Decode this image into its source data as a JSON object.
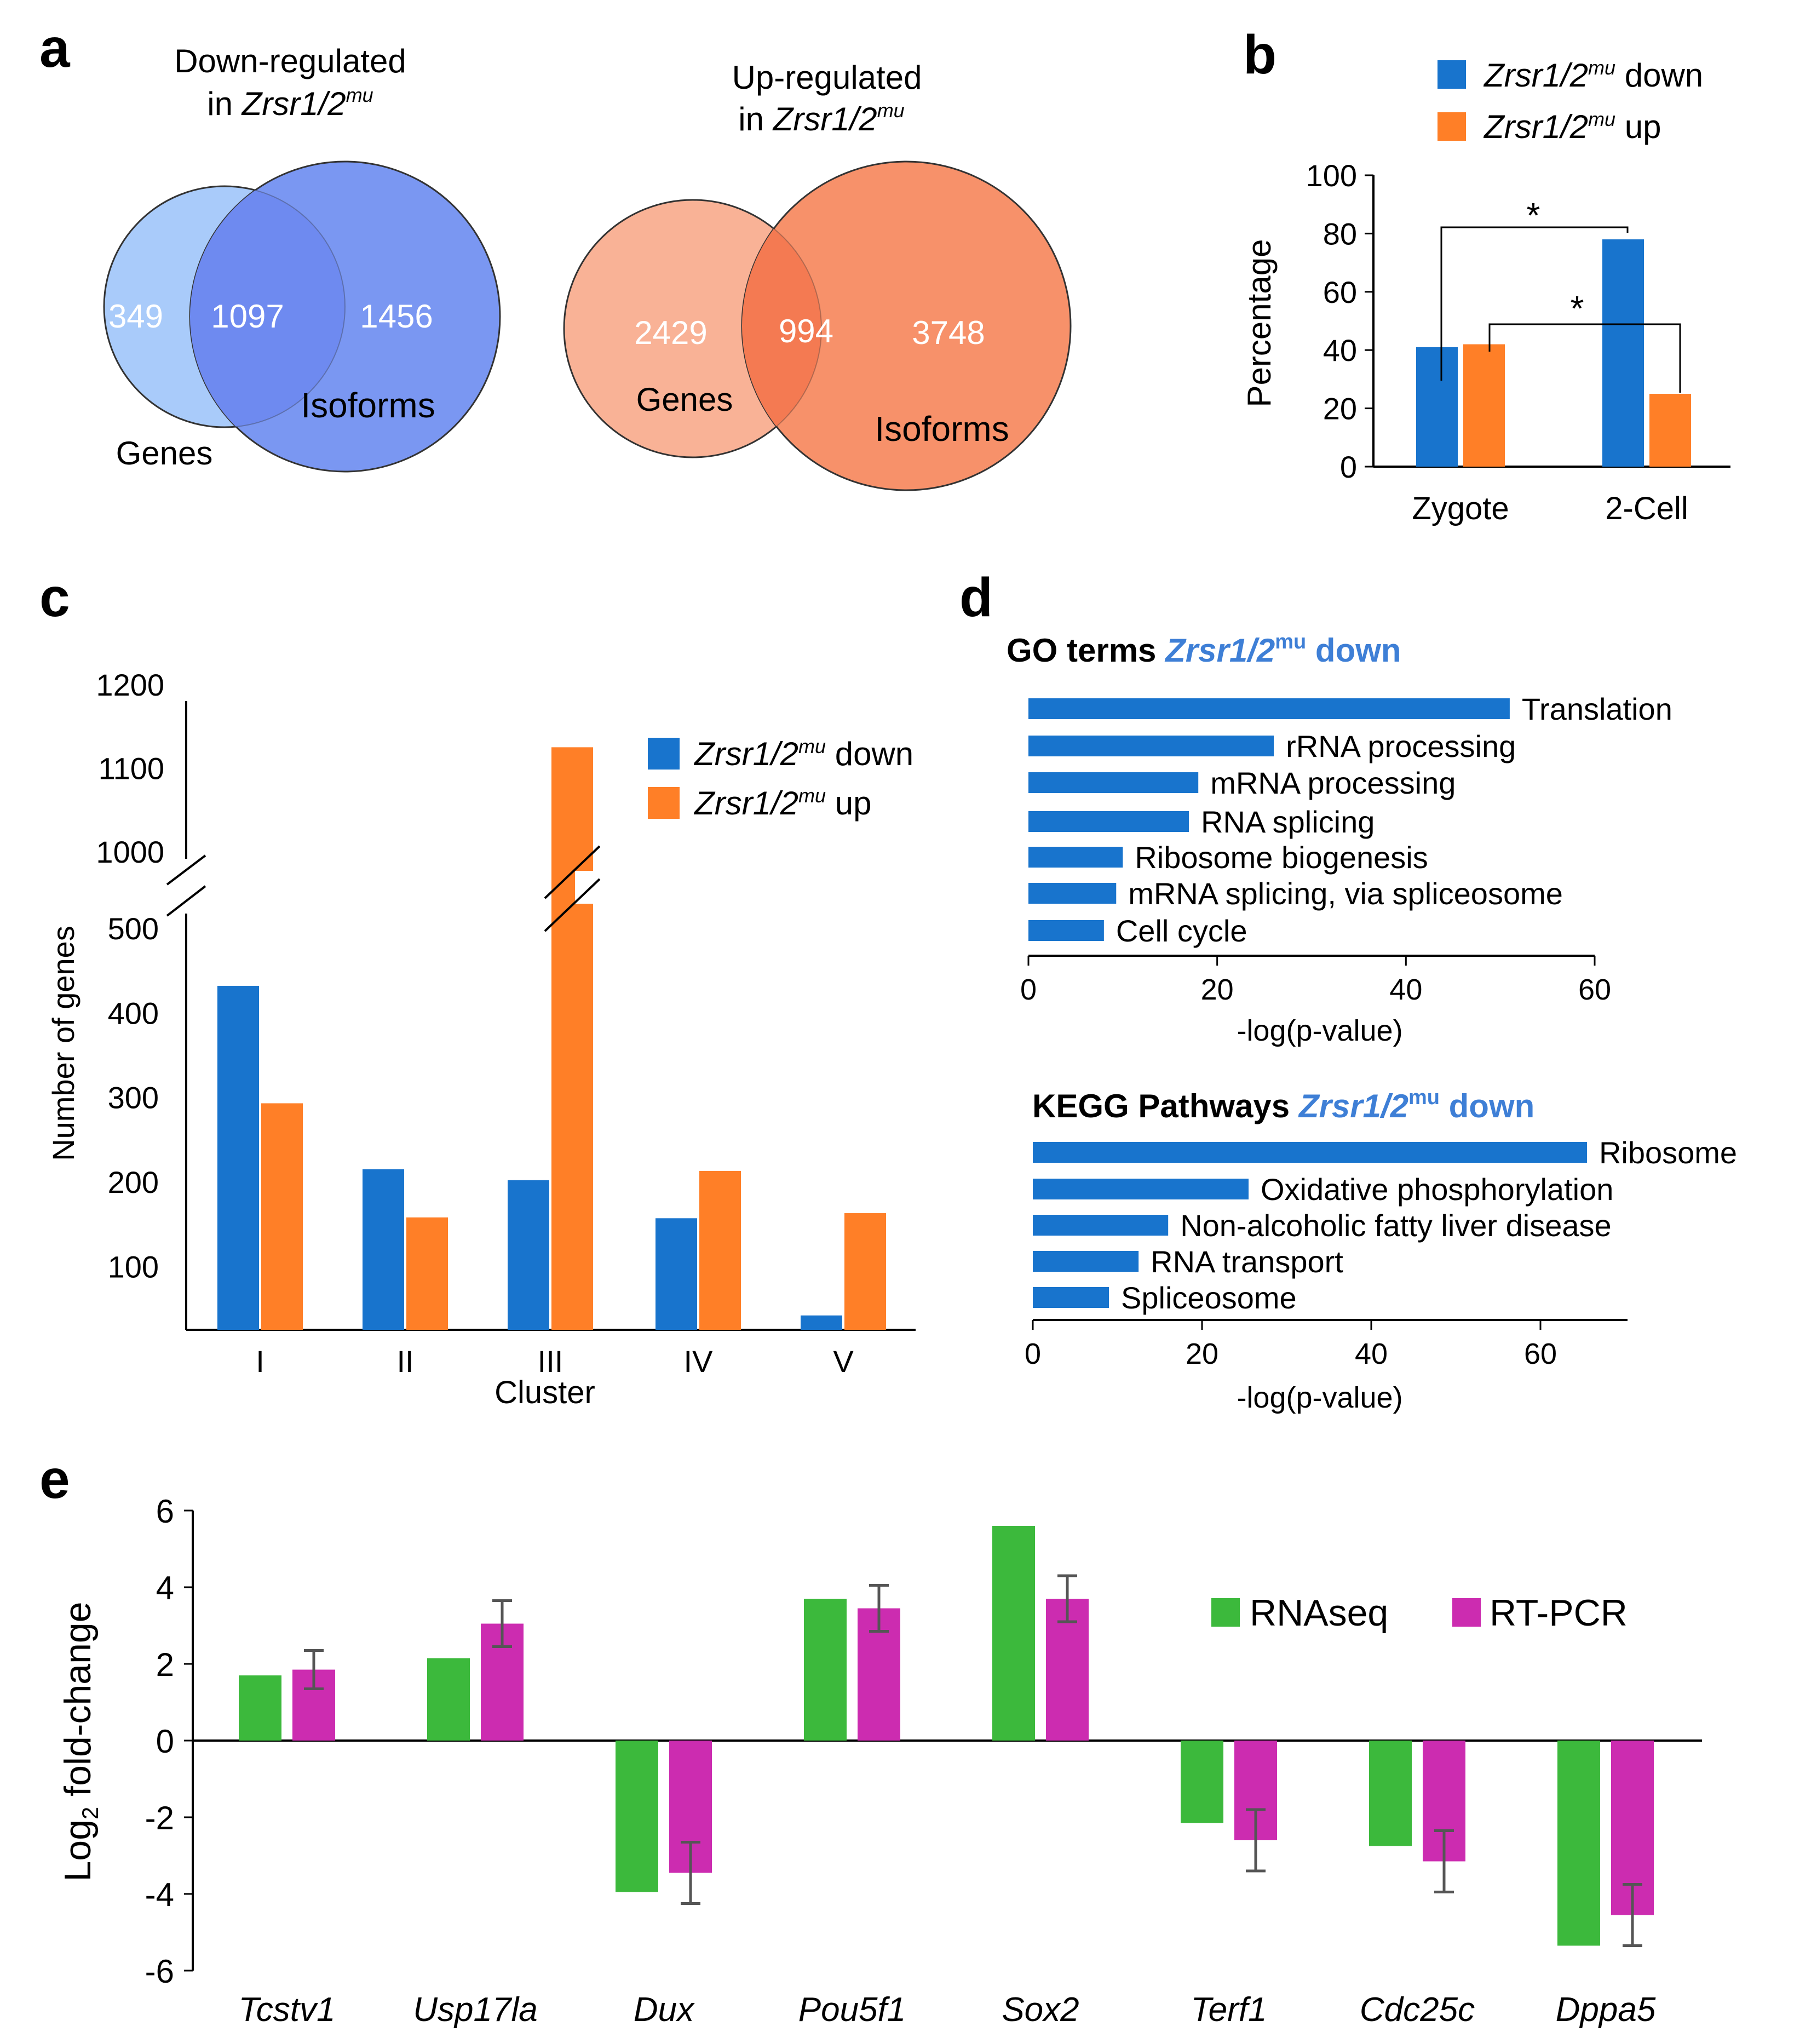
{
  "panel_labels": {
    "a": "a",
    "b": "b",
    "c": "c",
    "d": "d",
    "e": "e"
  },
  "colors": {
    "down": "#1874CD",
    "up": "#FF7F27",
    "venn_down_genes": "#A9CBFA",
    "venn_down_iso": "#7A97F2",
    "venn_down_overlap": "#6E8AF0",
    "venn_up_genes": "#F9B296",
    "venn_up_iso": "#F7916A",
    "venn_up_overlap": "#F47A52",
    "rnaseq": "#3CB93C",
    "rtpcr": "#CC2CB0",
    "go_title": "#3E7FD6",
    "errbar": "#555555"
  },
  "chart_data": [
    {
      "panel": "a",
      "type": "venn",
      "venns": [
        {
          "title_line1": "Down-regulated",
          "title_line2_prefix": "in ",
          "title_italic": "Zrsr1/2",
          "title_sup": "mu",
          "genes_only": "349",
          "overlap": "1097",
          "isoforms_only": "1456",
          "set1_label": "Genes",
          "set2_label": "Isoforms"
        },
        {
          "title_line1": "Up-regulated",
          "title_line2_prefix": "in ",
          "title_italic": "Zrsr1/2",
          "title_sup": "mu",
          "genes_only": "2429",
          "overlap": "994",
          "isoforms_only": "3748",
          "set1_label": "Genes",
          "set2_label": "Isoforms"
        }
      ]
    },
    {
      "panel": "b",
      "type": "bar",
      "categories": [
        "Zygote",
        "2-Cell"
      ],
      "series": [
        {
          "name_italic": "Zrsr1/2",
          "name_sup": "mu",
          "name_suffix": " down",
          "values": [
            41,
            78
          ]
        },
        {
          "name_italic": "Zrsr1/2",
          "name_sup": "mu",
          "name_suffix": " up",
          "values": [
            42,
            25
          ]
        }
      ],
      "ylabel": "Percentage",
      "ylim": [
        0,
        100
      ],
      "yticks": [
        "0",
        "20",
        "40",
        "60",
        "80",
        "100"
      ],
      "significance": [
        "*",
        "*"
      ]
    },
    {
      "panel": "c",
      "type": "bar",
      "categories": [
        "I",
        "II",
        "III",
        "IV",
        "V"
      ],
      "series": [
        {
          "name_italic": "Zrsr1/2",
          "name_sup": "mu",
          "name_suffix": " down",
          "values": [
            432,
            215,
            202,
            157,
            42
          ]
        },
        {
          "name_italic": "Zrsr1/2",
          "name_sup": "mu",
          "name_suffix": " up",
          "values": [
            293,
            158,
            1125,
            213,
            163
          ]
        }
      ],
      "xlabel": "Cluster",
      "ylabel": "Number of genes",
      "yticks_lower": [
        "100",
        "200",
        "300",
        "400",
        "500"
      ],
      "yticks_upper": [
        "1000",
        "1100",
        "1200"
      ],
      "axis_break": [
        500,
        1000
      ]
    },
    {
      "panel": "d",
      "type": "bar",
      "orientation": "horizontal",
      "title_bold": "GO terms ",
      "title_italic": "Zrsr1/2",
      "title_sup": "mu",
      "title_suffix": " down",
      "categories": [
        "Translation",
        "rRNA processing",
        "mRNA  processing",
        "RNA  splicing",
        "Ribosome  biogenesis",
        "mRNA  splicing, via spliceosome",
        "Cell cycle"
      ],
      "values": [
        51,
        26,
        18,
        17,
        10,
        9.3,
        8
      ],
      "xlabel": "-log(p-value)",
      "xlim": [
        0,
        60
      ],
      "xticks": [
        "0",
        "20",
        "40",
        "60"
      ]
    },
    {
      "panel": "d",
      "type": "bar",
      "orientation": "horizontal",
      "title_bold": "KEGG Pathways ",
      "title_italic": "Zrsr1/2",
      "title_sup": "mu",
      "title_suffix": " down",
      "categories": [
        "Ribosome",
        "Oxidative  phosphorylation",
        "Non-alcoholic  fatty liver  disease",
        "RNA  transport",
        "Spliceosome"
      ],
      "values": [
        65.5,
        25.5,
        16,
        12.5,
        9
      ],
      "xlabel": "-log(p-value)",
      "xlim": [
        0,
        70
      ],
      "xticks": [
        "0",
        "20",
        "40",
        "60"
      ]
    },
    {
      "panel": "e",
      "type": "bar",
      "categories": [
        "Tcstv1",
        "Usp17la",
        "Dux",
        "Pou5f1",
        "Sox2",
        "Terf1",
        "Cdc25c",
        "Dppa5"
      ],
      "series": [
        {
          "name": "RNAseq",
          "values": [
            1.7,
            2.15,
            -3.95,
            3.7,
            5.6,
            -2.15,
            -2.75,
            -5.35
          ]
        },
        {
          "name": "RT-PCR",
          "values": [
            1.85,
            3.05,
            -3.45,
            3.45,
            3.7,
            -2.6,
            -3.15,
            -4.55
          ],
          "errors": [
            0.5,
            0.6,
            0.8,
            0.6,
            0.6,
            0.8,
            0.8,
            0.8
          ]
        }
      ],
      "ylabel_main": "Log",
      "ylabel_sub": "2",
      "ylabel_rest": " fold-change",
      "ylim": [
        -6,
        6
      ],
      "yticks": [
        "-6",
        "-4",
        "-2",
        "0",
        "2",
        "4",
        "6"
      ]
    }
  ]
}
